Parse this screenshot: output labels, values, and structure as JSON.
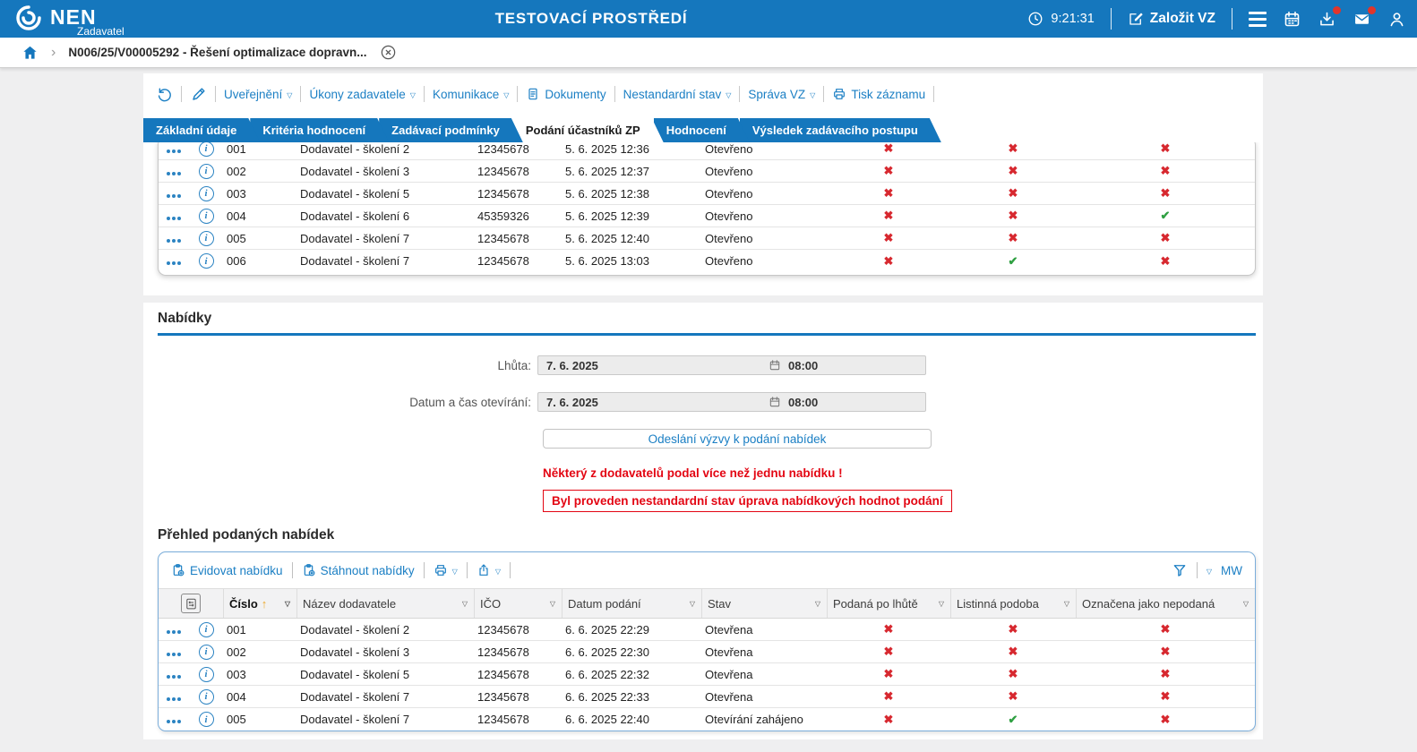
{
  "header": {
    "brand": "NEN",
    "brand_sub": "Zadavatel",
    "env_title": "TESTOVACÍ PROSTŘEDÍ",
    "clock": "9:21:31",
    "create_vz": "Založit VZ"
  },
  "breadcrumb": {
    "record": "N006/25/V00005292 - Řešení optimalizace dopravn..."
  },
  "record_toolbar": {
    "items": [
      {
        "label": "Uveřejnění",
        "dropdown": true,
        "icon": null
      },
      {
        "label": "Úkony zadavatele",
        "dropdown": true,
        "icon": null
      },
      {
        "label": "Komunikace",
        "dropdown": true,
        "icon": null
      },
      {
        "label": "Dokumenty",
        "dropdown": false,
        "icon": "document"
      },
      {
        "label": "Nestandardní stav",
        "dropdown": true,
        "icon": null
      },
      {
        "label": "Správa VZ",
        "dropdown": true,
        "icon": null
      },
      {
        "label": "Tisk záznamu",
        "dropdown": false,
        "icon": "printer"
      }
    ]
  },
  "tabs": [
    {
      "label": "Základní údaje",
      "active": false
    },
    {
      "label": "Kritéria hodnocení",
      "active": false
    },
    {
      "label": "Zadávací podmínky",
      "active": false
    },
    {
      "label": "Podání účastníků ZP",
      "active": true
    },
    {
      "label": "Hodnocení",
      "active": false
    },
    {
      "label": "Výsledek zadávacího postupu",
      "active": false
    }
  ],
  "participants_table": {
    "rows": [
      {
        "num": "001",
        "supplier": "Dodavatel - školení 2",
        "ico": "12345678",
        "date": "5. 6. 2025 12:36",
        "status": "Otevřeno",
        "late": false,
        "paper": false,
        "not_submitted": false
      },
      {
        "num": "002",
        "supplier": "Dodavatel - školení 3",
        "ico": "12345678",
        "date": "5. 6. 2025 12:37",
        "status": "Otevřeno",
        "late": false,
        "paper": false,
        "not_submitted": false
      },
      {
        "num": "003",
        "supplier": "Dodavatel - školení 5",
        "ico": "12345678",
        "date": "5. 6. 2025 12:38",
        "status": "Otevřeno",
        "late": false,
        "paper": false,
        "not_submitted": false
      },
      {
        "num": "004",
        "supplier": "Dodavatel - školení 6",
        "ico": "45359326",
        "date": "5. 6. 2025 12:39",
        "status": "Otevřeno",
        "late": false,
        "paper": false,
        "not_submitted": true
      },
      {
        "num": "005",
        "supplier": "Dodavatel - školení 7",
        "ico": "12345678",
        "date": "5. 6. 2025 12:40",
        "status": "Otevřeno",
        "late": false,
        "paper": false,
        "not_submitted": false
      },
      {
        "num": "006",
        "supplier": "Dodavatel - školení 7",
        "ico": "12345678",
        "date": "5. 6. 2025 13:03",
        "status": "Otevřeno",
        "late": false,
        "paper": true,
        "not_submitted": false
      }
    ]
  },
  "offers": {
    "section_title": "Nabídky",
    "deadline_label": "Lhůta:",
    "opening_label": "Datum a čas otevírání:",
    "deadline": {
      "date": "7. 6. 2025",
      "time": "08:00"
    },
    "opening": {
      "date": "7. 6. 2025",
      "time": "08:00"
    },
    "send_invitation_button": "Odeslání výzvy k podání nabídek",
    "warning_multiple": "Některý z dodavatelů podal více než jednu nabídku !",
    "warning_nonstandard": "Byl proveden nestandardní stav úprava nabídkových hodnot podání",
    "overview_title": "Přehled podaných nabídek"
  },
  "offers_table": {
    "toolbar": {
      "register": "Evidovat nabídku",
      "download": "Stáhnout nabídky",
      "view_code": "MW"
    },
    "columns": [
      {
        "label": "Číslo",
        "sort": "asc"
      },
      {
        "label": "Název dodavatele",
        "sort": null
      },
      {
        "label": "IČO",
        "sort": null
      },
      {
        "label": "Datum podání",
        "sort": null
      },
      {
        "label": "Stav",
        "sort": null
      },
      {
        "label": "Podaná po lhůtě",
        "sort": null
      },
      {
        "label": "Listinná podoba",
        "sort": null
      },
      {
        "label": "Označena jako nepodaná",
        "sort": null
      }
    ],
    "rows": [
      {
        "num": "001",
        "supplier": "Dodavatel - školení 2",
        "ico": "12345678",
        "date": "6. 6. 2025 22:29",
        "status": "Otevřena",
        "late": false,
        "paper": false,
        "not_submitted": false
      },
      {
        "num": "002",
        "supplier": "Dodavatel - školení 3",
        "ico": "12345678",
        "date": "6. 6. 2025 22:30",
        "status": "Otevřena",
        "late": false,
        "paper": false,
        "not_submitted": false
      },
      {
        "num": "003",
        "supplier": "Dodavatel - školení 5",
        "ico": "12345678",
        "date": "6. 6. 2025 22:32",
        "status": "Otevřena",
        "late": false,
        "paper": false,
        "not_submitted": false
      },
      {
        "num": "004",
        "supplier": "Dodavatel - školení 7",
        "ico": "12345678",
        "date": "6. 6. 2025 22:33",
        "status": "Otevřena",
        "late": false,
        "paper": false,
        "not_submitted": false
      },
      {
        "num": "005",
        "supplier": "Dodavatel - školení 7",
        "ico": "12345678",
        "date": "6. 6. 2025 22:40",
        "status": "Otevírání zahájeno",
        "late": false,
        "paper": true,
        "not_submitted": false
      }
    ]
  },
  "symbols": {
    "cross": "✖",
    "check": "✔",
    "dropdown": "▽",
    "sort_asc": "↑",
    "chevron": "›"
  },
  "icon_names": [
    "nen-logo-icon",
    "clock-icon",
    "edit-square-icon",
    "hamburger-menu-icon",
    "calendar-icon",
    "downloads-icon",
    "messages-icon",
    "profile-icon",
    "home-icon",
    "close-circle-icon",
    "history-icon",
    "edit-pen-icon",
    "document-icon",
    "printer-icon",
    "clipboard-add-icon",
    "clipboard-download-icon",
    "share-icon",
    "funnel-icon",
    "calendar-small-icon",
    "column-settings-icon",
    "row-menu-icon",
    "info-icon"
  ],
  "colors": {
    "primary": "#1577bd",
    "danger": "#d7282f",
    "warning_text": "#e30613",
    "success": "#2fa042",
    "page_bg": "#efeff0"
  }
}
